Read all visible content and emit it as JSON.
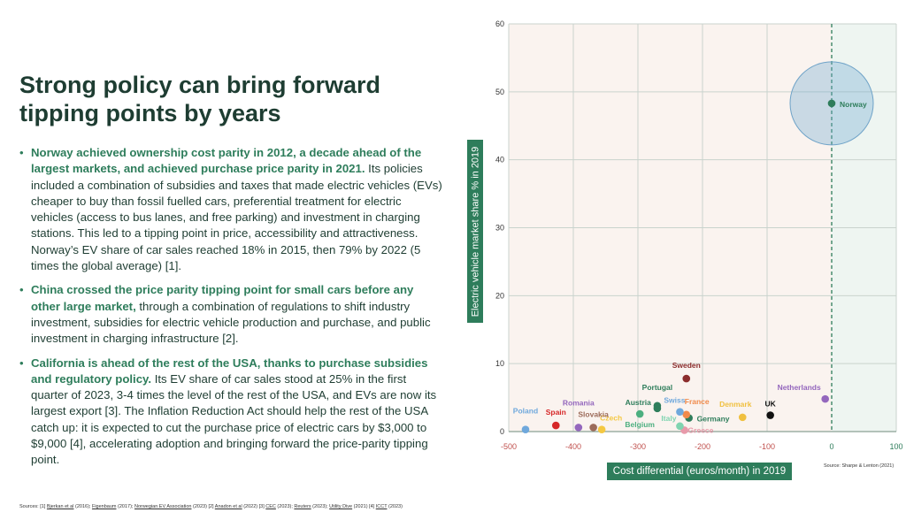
{
  "title": "Strong policy can bring forward tipping points by years",
  "bullets": [
    {
      "bold": "Norway achieved ownership cost parity in 2012, a decade ahead of the largest markets, and achieved purchase price parity in 2021.",
      "text": " Its policies included a combination of subsidies and taxes that made electric vehicles (EVs) cheaper to buy than fossil fuelled cars, preferential treatment for electric vehicles (access to bus lanes, and free parking) and investment in charging stations. This led to a tipping point in price, accessibility and attractiveness. Norway’s EV share of car sales reached 18% in 2015, then 79% by 2022 (5 times the global average) [1]."
    },
    {
      "bold": "China crossed the price parity tipping point for small cars before any other large market,",
      "text": " through a combination of regulations to shift industry investment, subsidies for electric vehicle production and purchase, and public investment in charging infrastructure [2]."
    },
    {
      "bold": "California is ahead of the rest of the USA, thanks to purchase subsidies and regulatory policy.",
      "text": " Its EV share of car sales stood at 25% in the first quarter of 2023, 3-4 times the level of the rest of the USA, and EVs are now its largest export [3]. The Inflation Reduction Act should help the rest of the USA catch up: it is expected to cut the purchase price of electric cars by $3,000 to $9,000 [4], accelerating adoption and bringing forward the price-parity tipping point."
    }
  ],
  "sources": {
    "prefix": "Sources: [1] ",
    "items": [
      "Bjerkan et al",
      " (2016); ",
      "Figenbaum",
      " (2017); ",
      "Norwegian EV Association",
      " (2023) [2] ",
      "Anadon et al",
      " (2022) [3] ",
      "CEC",
      " (2023); ",
      "Reuters",
      " (2023); ",
      "Utility Dive",
      " (2021) [4] ",
      "ICCT",
      " (2023)"
    ]
  },
  "chart_data": {
    "type": "scatter",
    "xlabel": "Cost differential (euros/month) in 2019",
    "ylabel": "Electric vehicle market share % in 2019",
    "xlim": [
      -500,
      100
    ],
    "ylim": [
      0,
      60
    ],
    "xticks": [
      "-500",
      "-400",
      "-300",
      "-200",
      "-100",
      "0",
      "100"
    ],
    "yticks": [
      "0",
      "10",
      "20",
      "30",
      "40",
      "50",
      "60"
    ],
    "grid": true,
    "source": "Source: Sharpe & Lenton (2021)",
    "points": [
      {
        "name": "Norway",
        "x": 0,
        "y": 48.3,
        "color": "#2e7d5b"
      },
      {
        "name": "Sweden",
        "x": -225,
        "y": 7.8,
        "color": "#8b2c2c"
      },
      {
        "name": "Netherlands",
        "x": -10,
        "y": 4.8,
        "color": "#9467bd"
      },
      {
        "name": "UK",
        "x": -95,
        "y": 2.4,
        "color": "#111111"
      },
      {
        "name": "Denmark",
        "x": -138,
        "y": 2.1,
        "color": "#f0c040"
      },
      {
        "name": "Germany",
        "x": -221,
        "y": 2.0,
        "color": "#2e7d5b"
      },
      {
        "name": "France",
        "x": -225,
        "y": 2.5,
        "color": "#f08a4b"
      },
      {
        "name": "Swiss",
        "x": -235,
        "y": 2.9,
        "color": "#6fa8dc"
      },
      {
        "name": "Greece",
        "x": -228,
        "y": 0.2,
        "color": "#e89aaa"
      },
      {
        "name": "Italy",
        "x": -235,
        "y": 0.8,
        "color": "#7fd4b0"
      },
      {
        "name": "Portugal",
        "x": -270,
        "y": 3.8,
        "color": "#2e7d5b"
      },
      {
        "name": "Austria",
        "x": -270,
        "y": 3.4,
        "color": "#2e7d5b"
      },
      {
        "name": "Belgium",
        "x": -297,
        "y": 2.6,
        "color": "#4caf80"
      },
      {
        "name": "Czech",
        "x": -356,
        "y": 0.3,
        "color": "#f4c842"
      },
      {
        "name": "Slovakia",
        "x": -369,
        "y": 0.6,
        "color": "#9c6b5a"
      },
      {
        "name": "Romania",
        "x": -392,
        "y": 0.6,
        "color": "#9467bd"
      },
      {
        "name": "Spain",
        "x": -427,
        "y": 0.9,
        "color": "#d62728"
      },
      {
        "name": "Poland",
        "x": -474,
        "y": 0.3,
        "color": "#6fa8dc"
      }
    ]
  }
}
